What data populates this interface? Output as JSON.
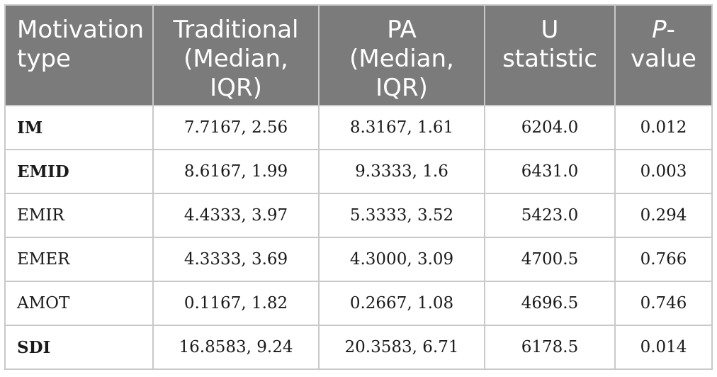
{
  "table": {
    "headers": [
      {
        "line1": "Motivation",
        "line2": "type",
        "line3": ""
      },
      {
        "line1": "Traditional",
        "line2": "(Median,",
        "line3": "IQR)"
      },
      {
        "line1": "PA",
        "line2": "(Median,",
        "line3": "IQR)"
      },
      {
        "line1": "U",
        "line2": "statistic",
        "line3": ""
      },
      {
        "line1_italic": "P",
        "line1_rest": "-",
        "line2": "value",
        "line3": ""
      }
    ],
    "rows": [
      {
        "type": "IM",
        "traditional": "7.7167, 2.56",
        "pa": "8.3167, 1.61",
        "u": "6204.0",
        "p": "0.012",
        "bold": true
      },
      {
        "type": "EMID",
        "traditional": "8.6167, 1.99",
        "pa": "9.3333, 1.6",
        "u": "6431.0",
        "p": "0.003",
        "bold": true
      },
      {
        "type": "EMIR",
        "traditional": "4.4333, 3.97",
        "pa": "5.3333, 3.52",
        "u": "5423.0",
        "p": "0.294",
        "bold": false
      },
      {
        "type": "EMER",
        "traditional": "4.3333, 3.69",
        "pa": "4.3000, 3.09",
        "u": "4700.5",
        "p": "0.766",
        "bold": false
      },
      {
        "type": "AMOT",
        "traditional": "0.1167, 1.82",
        "pa": "0.2667, 1.08",
        "u": "4696.5",
        "p": "0.746",
        "bold": false
      },
      {
        "type": "SDI",
        "traditional": "16.8583, 9.24",
        "pa": "20.3583, 6.71",
        "u": "6178.5",
        "p": "0.014",
        "bold": true
      }
    ]
  },
  "colors": {
    "header_bg": "#7b7b7b",
    "header_text": "#ffffff",
    "border": "#c9c9c9"
  }
}
